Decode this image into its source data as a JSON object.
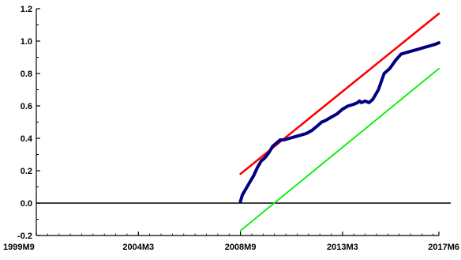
{
  "chart_data": {
    "type": "line",
    "title": "",
    "xlabel": "",
    "ylabel": "",
    "ylim": [
      -0.2,
      1.2
    ],
    "y_ticks": [
      -0.2,
      0.0,
      0.2,
      0.4,
      0.6,
      0.8,
      1.0,
      1.2
    ],
    "y_tick_labels": [
      "-0.2",
      "0.0",
      "0.2",
      "0.4",
      "0.6",
      "0.8",
      "1.0",
      "1.2"
    ],
    "x_ticks": [
      0,
      54,
      108,
      162,
      213
    ],
    "x_tick_labels": [
      "1999M9",
      "2004M3",
      "2008M9",
      "2013M3",
      "2017M6"
    ],
    "xlim": [
      0,
      213
    ],
    "zero_line": true,
    "grid": false,
    "series": [
      {
        "color": "#ff0000",
        "x": [
          108,
          213
        ],
        "y": [
          0.18,
          1.17
        ]
      },
      {
        "color": "#00ee00",
        "x": [
          108,
          213
        ],
        "y": [
          -0.17,
          0.83
        ]
      },
      {
        "color": "#000080",
        "x": [
          108,
          109,
          111,
          113,
          115,
          117,
          119,
          121,
          123,
          125,
          127,
          129,
          131,
          134,
          137,
          140,
          143,
          146,
          149,
          151,
          153,
          156,
          159,
          162,
          165,
          168,
          170,
          171,
          172,
          174,
          176,
          178,
          181,
          184,
          187,
          190,
          193,
          196,
          199,
          202,
          205,
          208,
          211,
          213
        ],
        "y": [
          0.01,
          0.05,
          0.09,
          0.13,
          0.17,
          0.22,
          0.26,
          0.28,
          0.31,
          0.35,
          0.37,
          0.39,
          0.39,
          0.4,
          0.41,
          0.42,
          0.43,
          0.45,
          0.48,
          0.5,
          0.51,
          0.53,
          0.55,
          0.58,
          0.6,
          0.61,
          0.62,
          0.63,
          0.62,
          0.63,
          0.62,
          0.64,
          0.7,
          0.8,
          0.83,
          0.88,
          0.92,
          0.93,
          0.94,
          0.95,
          0.96,
          0.97,
          0.98,
          0.99
        ]
      }
    ]
  }
}
